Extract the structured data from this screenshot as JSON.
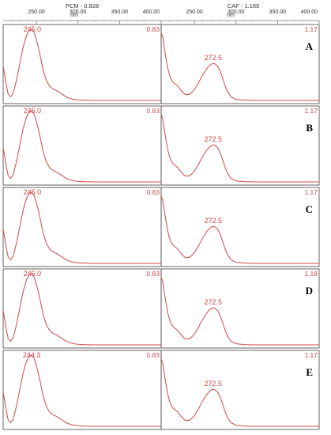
{
  "chart_data": {
    "type": "line",
    "panels": [
      {
        "title": "PCM - 0.828",
        "xlabel": "nm",
        "xlim": [
          210,
          400
        ],
        "tick_values": [
          250,
          300,
          350,
          400
        ],
        "tick_labels": [
          "250.00",
          "300.00",
          "350.00",
          "400.00"
        ]
      },
      {
        "title": "CAF - 1.169",
        "xlabel": "nm",
        "xlim": [
          210,
          400
        ],
        "tick_values": [
          250,
          300,
          350,
          400
        ],
        "tick_labels": [
          "250.00",
          "300.00",
          "350.00",
          "400.00"
        ]
      }
    ],
    "rows": [
      {
        "label": "A",
        "pcm": {
          "peak_label": "245.0",
          "peak_x": 245.0,
          "max_label": "0.83"
        },
        "caf": {
          "peak_label": "272.5",
          "peak_x": 272.5,
          "max_label": "1.17"
        }
      },
      {
        "label": "B",
        "pcm": {
          "peak_label": "245.0",
          "peak_x": 245.0,
          "max_label": "0.83"
        },
        "caf": {
          "peak_label": "272.5",
          "peak_x": 272.5,
          "max_label": "1.17"
        }
      },
      {
        "label": "C",
        "pcm": {
          "peak_label": "245.0",
          "peak_x": 245.0,
          "max_label": "0.83"
        },
        "caf": {
          "peak_label": "272.5",
          "peak_x": 272.5,
          "max_label": "1.17"
        }
      },
      {
        "label": "D",
        "pcm": {
          "peak_label": "245.0",
          "peak_x": 245.0,
          "max_label": "0.83"
        },
        "caf": {
          "peak_label": "272.5",
          "peak_x": 272.5,
          "max_label": "1.18"
        }
      },
      {
        "label": "E",
        "pcm": {
          "peak_label": "244.3",
          "peak_x": 244.3,
          "max_label": "0.83"
        },
        "caf": {
          "peak_label": "272.5",
          "peak_x": 272.5,
          "max_label": "1.17"
        }
      }
    ],
    "pcm_curve": {
      "x": [
        210,
        212,
        214,
        216,
        219,
        222,
        226,
        230,
        234,
        238,
        241,
        243,
        245,
        247,
        249,
        252,
        255,
        258,
        262,
        266,
        270,
        274,
        278,
        282,
        286,
        290,
        295,
        300,
        305,
        310,
        320,
        400
      ],
      "y": [
        0.48,
        0.35,
        0.2,
        0.09,
        0.05,
        0.1,
        0.28,
        0.52,
        0.75,
        0.91,
        0.98,
        1.0,
        0.99,
        0.96,
        0.89,
        0.76,
        0.6,
        0.43,
        0.28,
        0.2,
        0.16,
        0.14,
        0.11,
        0.08,
        0.05,
        0.03,
        0.015,
        0.008,
        0.004,
        0.002,
        0.0,
        0.0
      ]
    },
    "caf_curve": {
      "x": [
        210,
        212,
        214,
        216,
        218,
        220,
        222,
        224,
        226,
        230,
        234,
        238,
        241,
        245,
        250,
        255,
        260,
        265,
        268,
        271,
        273,
        275,
        278,
        281,
        284,
        287,
        290,
        294,
        300,
        310,
        320,
        400
      ],
      "y": [
        0.95,
        0.88,
        0.72,
        0.58,
        0.45,
        0.36,
        0.3,
        0.26,
        0.24,
        0.2,
        0.14,
        0.09,
        0.08,
        0.09,
        0.15,
        0.25,
        0.36,
        0.45,
        0.49,
        0.515,
        0.52,
        0.51,
        0.48,
        0.41,
        0.31,
        0.2,
        0.12,
        0.05,
        0.015,
        0.004,
        0.0,
        0.0
      ]
    }
  }
}
